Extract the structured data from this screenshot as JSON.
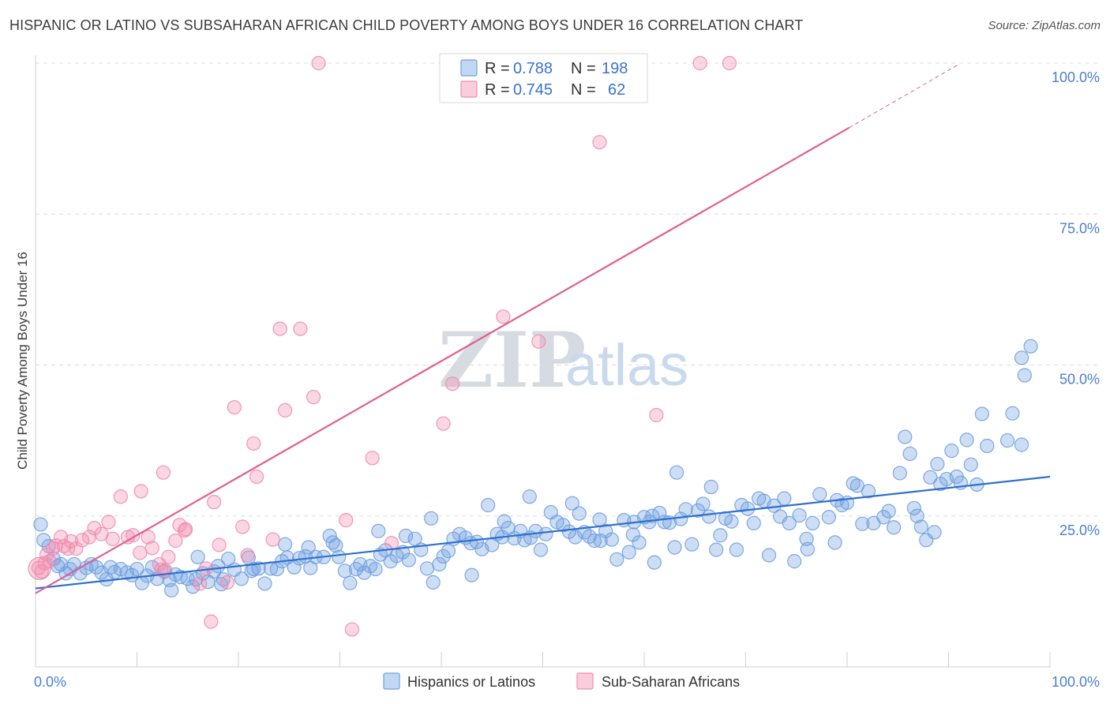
{
  "header": {
    "title": "HISPANIC OR LATINO VS SUBSAHARAN AFRICAN CHILD POVERTY AMONG BOYS UNDER 16 CORRELATION CHART",
    "source": "Source: ZipAtlas.com"
  },
  "watermark": {
    "zip": "ZIP",
    "atlas": "atlas"
  },
  "legend_top": [
    {
      "r_label": "R =",
      "r": "0.788",
      "n_label": "N =",
      "n": "198",
      "color": "#6fa0e0"
    },
    {
      "r_label": "R =",
      "r": "0.745",
      "n_label": "N =",
      "n": "62",
      "color": "#f08cae"
    }
  ],
  "chart_data": {
    "type": "scatter",
    "title": "HISPANIC OR LATINO VS SUBSAHARAN AFRICAN CHILD POVERTY AMONG BOYS UNDER 16 CORRELATION CHART",
    "xlabel": "",
    "ylabel": "Child Poverty Among Boys Under 16",
    "xlim": [
      0,
      100
    ],
    "ylim": [
      0,
      100
    ],
    "x_ticks": [
      "0.0%",
      "100.0%"
    ],
    "y_ticks": [
      {
        "value": 25,
        "label": "25.0%"
      },
      {
        "value": 50,
        "label": "50.0%"
      },
      {
        "value": 75,
        "label": "75.0%"
      },
      {
        "value": 100,
        "label": "100.0%"
      }
    ],
    "grid": true,
    "legend_position": "bottom-center",
    "series": [
      {
        "name": "Hispanics or Latinos",
        "color": "#6fa0e0",
        "line_color": "#2f6fd0",
        "trend": {
          "x": [
            0,
            100
          ],
          "y": [
            13,
            31.5
          ]
        },
        "points": [
          [
            0.5,
            23.6
          ],
          [
            0.8,
            21
          ],
          [
            1.3,
            20
          ],
          [
            1.8,
            17.9
          ],
          [
            2.2,
            16.7
          ],
          [
            2.5,
            17
          ],
          [
            3,
            15.5
          ],
          [
            3.4,
            16.2
          ],
          [
            3.8,
            17
          ],
          [
            4.4,
            15.5
          ],
          [
            5,
            16.4
          ],
          [
            5.5,
            17
          ],
          [
            6,
            16.5
          ],
          [
            6.5,
            15.6
          ],
          [
            7,
            14.5
          ],
          [
            7.4,
            16.5
          ],
          [
            7.8,
            15.7
          ],
          [
            8.4,
            16.2
          ],
          [
            9,
            15.6
          ],
          [
            9.5,
            15.2
          ],
          [
            10,
            16.2
          ],
          [
            10.5,
            13.9
          ],
          [
            11,
            15.1
          ],
          [
            11.5,
            16.5
          ],
          [
            12,
            14.6
          ],
          [
            12.7,
            15.8
          ],
          [
            13.2,
            14.4
          ],
          [
            13.8,
            15.3
          ],
          [
            14.3,
            14.9
          ],
          [
            15,
            14.6
          ],
          [
            15.5,
            13.3
          ],
          [
            16,
            18.2
          ],
          [
            16.5,
            15.5
          ],
          [
            17,
            14.1
          ],
          [
            17.6,
            15.8
          ],
          [
            18,
            16.7
          ],
          [
            18.5,
            14.5
          ],
          [
            19,
            17.9
          ],
          [
            19.6,
            16.1
          ],
          [
            20.3,
            14.6
          ],
          [
            21,
            18.1
          ],
          [
            21.5,
            16.2
          ],
          [
            22,
            16.3
          ],
          [
            22.6,
            13.8
          ],
          [
            23.2,
            16.3
          ],
          [
            23.8,
            16.2
          ],
          [
            24.3,
            17.5
          ],
          [
            24.8,
            18.1
          ],
          [
            25.5,
            16.5
          ],
          [
            26,
            18
          ],
          [
            26.6,
            18.3
          ],
          [
            27.1,
            16.4
          ],
          [
            27.6,
            18.2
          ],
          [
            28.4,
            18.2
          ],
          [
            29,
            21.7
          ],
          [
            29.3,
            20.6
          ],
          [
            29.9,
            18.2
          ],
          [
            30.5,
            15.9
          ],
          [
            31,
            13.9
          ],
          [
            31.6,
            16.2
          ],
          [
            32,
            17
          ],
          [
            32.4,
            15.6
          ],
          [
            33,
            16.7
          ],
          [
            33.5,
            16.2
          ],
          [
            34,
            18.6
          ],
          [
            34.5,
            19.3
          ],
          [
            35,
            17.5
          ],
          [
            35.6,
            18.4
          ],
          [
            36.2,
            19
          ],
          [
            36.8,
            17.7
          ],
          [
            37.4,
            21.2
          ],
          [
            38,
            19.4
          ],
          [
            38.6,
            16.3
          ],
          [
            39.2,
            14
          ],
          [
            39.8,
            17
          ],
          [
            40.2,
            18.3
          ],
          [
            40.7,
            19.2
          ],
          [
            41.2,
            21.2
          ],
          [
            41.8,
            22
          ],
          [
            42.4,
            21.4
          ],
          [
            43,
            15.2
          ],
          [
            43.5,
            20.7
          ],
          [
            44,
            19.5
          ],
          [
            44.6,
            26.8
          ],
          [
            45,
            20.2
          ],
          [
            45.5,
            22
          ],
          [
            46,
            21.5
          ],
          [
            46.6,
            23
          ],
          [
            47.2,
            21.3
          ],
          [
            47.8,
            22.5
          ],
          [
            48.2,
            21
          ],
          [
            48.8,
            21.4
          ],
          [
            49.3,
            22.5
          ],
          [
            49.8,
            19.4
          ],
          [
            50.3,
            22
          ],
          [
            50.8,
            25.6
          ],
          [
            51.4,
            24
          ],
          [
            52,
            23.5
          ],
          [
            52.6,
            22.4
          ],
          [
            53.2,
            21.5
          ],
          [
            53.6,
            25.4
          ],
          [
            54.1,
            22.3
          ],
          [
            54.6,
            21.6
          ],
          [
            55.1,
            20.9
          ],
          [
            55.7,
            20.9
          ],
          [
            56.2,
            22.5
          ],
          [
            56.8,
            21.1
          ],
          [
            57.3,
            17.8
          ],
          [
            58,
            24.3
          ],
          [
            58.5,
            19
          ],
          [
            59,
            24
          ],
          [
            59.5,
            20.6
          ],
          [
            60,
            24.8
          ],
          [
            60.5,
            24
          ],
          [
            61,
            17.3
          ],
          [
            61.5,
            25.5
          ],
          [
            62,
            24
          ],
          [
            62.5,
            23.9
          ],
          [
            63,
            19.8
          ],
          [
            63.6,
            24.5
          ],
          [
            64.1,
            26.1
          ],
          [
            64.7,
            20.3
          ],
          [
            65.3,
            25.9
          ],
          [
            65.8,
            27
          ],
          [
            66.4,
            24.9
          ],
          [
            67.1,
            19.4
          ],
          [
            67.5,
            21.8
          ],
          [
            68,
            24.6
          ],
          [
            68.6,
            24.1
          ],
          [
            69.1,
            19.4
          ],
          [
            69.6,
            26.8
          ],
          [
            70.2,
            26.2
          ],
          [
            70.8,
            23.8
          ],
          [
            71.3,
            27.9
          ],
          [
            71.8,
            27.5
          ],
          [
            72.3,
            18.5
          ],
          [
            72.8,
            26.7
          ],
          [
            73.4,
            24.9
          ],
          [
            73.8,
            27.9
          ],
          [
            74.3,
            23.8
          ],
          [
            74.8,
            17.5
          ],
          [
            75.3,
            25.1
          ],
          [
            76,
            21.2
          ],
          [
            76.6,
            23.8
          ],
          [
            76.1,
            19.5
          ],
          [
            77.3,
            28.6
          ],
          [
            78.2,
            24.8
          ],
          [
            78.8,
            20.6
          ],
          [
            79,
            27.6
          ],
          [
            79.5,
            26.8
          ],
          [
            80,
            27.2
          ],
          [
            80.6,
            30.4
          ],
          [
            81,
            30
          ],
          [
            81.5,
            23.7
          ],
          [
            82.1,
            29.1
          ],
          [
            82.6,
            23.8
          ],
          [
            83.6,
            24.8
          ],
          [
            84.1,
            25.8
          ],
          [
            84.6,
            23.1
          ],
          [
            85.2,
            32.1
          ],
          [
            85.7,
            38.1
          ],
          [
            86.2,
            35.3
          ],
          [
            86.6,
            26.3
          ],
          [
            86.9,
            25
          ],
          [
            87.3,
            23.2
          ],
          [
            87.8,
            21
          ],
          [
            88.2,
            31.4
          ],
          [
            88.6,
            22.3
          ],
          [
            89.2,
            30.3
          ],
          [
            89.8,
            31.1
          ],
          [
            90.3,
            35.8
          ],
          [
            90.8,
            31.5
          ],
          [
            91.2,
            30.5
          ],
          [
            91.8,
            37.6
          ],
          [
            92.2,
            33.5
          ],
          [
            92.8,
            30.2
          ],
          [
            93.3,
            41.9
          ],
          [
            93.8,
            36.6
          ],
          [
            95.8,
            37.5
          ],
          [
            96.3,
            42
          ],
          [
            97.2,
            36.8
          ],
          [
            97.5,
            48.3
          ],
          [
            97.2,
            51.2
          ],
          [
            98.1,
            53.1
          ],
          [
            88.9,
            33.6
          ],
          [
            66.6,
            29.8
          ],
          [
            63.2,
            32.2
          ],
          [
            60.8,
            25
          ],
          [
            58.9,
            21.9
          ],
          [
            55.6,
            24.4
          ],
          [
            52.9,
            27.1
          ],
          [
            48.7,
            28.2
          ],
          [
            46.2,
            24.1
          ],
          [
            42.9,
            20.5
          ],
          [
            39,
            24.6
          ],
          [
            36.5,
            21.7
          ],
          [
            33.8,
            22.5
          ],
          [
            29.6,
            20.1
          ],
          [
            26.9,
            19.8
          ],
          [
            24.6,
            20.3
          ],
          [
            21.3,
            15.9
          ],
          [
            18.3,
            13.7
          ],
          [
            15.8,
            14.5
          ],
          [
            13.4,
            12.7
          ]
        ]
      },
      {
        "name": "Sub-Saharan Africans",
        "color": "#f08cae",
        "line_color": "#e06090",
        "trend": {
          "x": [
            0,
            80.2,
            91
          ],
          "y": [
            12.2,
            89.3,
            99.8
          ]
        },
        "points": [
          [
            0.3,
            16.4
          ],
          [
            0.6,
            15.8
          ],
          [
            0.9,
            17.2
          ],
          [
            1.1,
            18.6
          ],
          [
            1.4,
            17.5
          ],
          [
            1.7,
            19.6
          ],
          [
            2,
            20.1
          ],
          [
            2.5,
            21.5
          ],
          [
            2.8,
            20
          ],
          [
            3.2,
            19.6
          ],
          [
            3.5,
            20.8
          ],
          [
            4,
            19.6
          ],
          [
            4.6,
            21
          ],
          [
            5.3,
            21.5
          ],
          [
            5.8,
            23
          ],
          [
            6.5,
            22
          ],
          [
            7.2,
            24
          ],
          [
            7.6,
            21.2
          ],
          [
            8.4,
            28.2
          ],
          [
            9.1,
            21.5
          ],
          [
            9.6,
            21.8
          ],
          [
            10.3,
            18.9
          ],
          [
            10.4,
            29.1
          ],
          [
            11.1,
            21.5
          ],
          [
            11.5,
            19.7
          ],
          [
            12.2,
            17
          ],
          [
            12.4,
            16.1
          ],
          [
            12.6,
            32.2
          ],
          [
            12.8,
            16
          ],
          [
            13.1,
            18.2
          ],
          [
            13.8,
            20.9
          ],
          [
            14.2,
            23.5
          ],
          [
            14.7,
            22.6
          ],
          [
            14.8,
            22.8
          ],
          [
            16.2,
            13.8
          ],
          [
            16.8,
            16.3
          ],
          [
            17.3,
            7.5
          ],
          [
            17.6,
            27.3
          ],
          [
            18.1,
            20.2
          ],
          [
            18.9,
            14
          ],
          [
            19.6,
            43
          ],
          [
            20.4,
            23.2
          ],
          [
            20.9,
            18.5
          ],
          [
            21.5,
            37
          ],
          [
            21.8,
            31.5
          ],
          [
            23.4,
            21.1
          ],
          [
            24.1,
            56
          ],
          [
            24.6,
            42.5
          ],
          [
            26.1,
            56
          ],
          [
            27.4,
            44.7
          ],
          [
            27.9,
            100
          ],
          [
            30.6,
            24.3
          ],
          [
            31.2,
            6.2
          ],
          [
            33.2,
            34.6
          ],
          [
            35.1,
            20.5
          ],
          [
            40.2,
            40.3
          ],
          [
            41.1,
            46.9
          ],
          [
            46.1,
            58
          ],
          [
            49.6,
            53.9
          ],
          [
            55.6,
            86.9
          ],
          [
            61.2,
            41.7
          ],
          [
            65.5,
            100
          ],
          [
            68.4,
            100
          ]
        ]
      }
    ]
  },
  "legend_bottom": [
    {
      "label": "Hispanics or Latinos",
      "color": "#6fa0e0"
    },
    {
      "label": "Sub-Saharan Africans",
      "color": "#f08cae"
    }
  ]
}
